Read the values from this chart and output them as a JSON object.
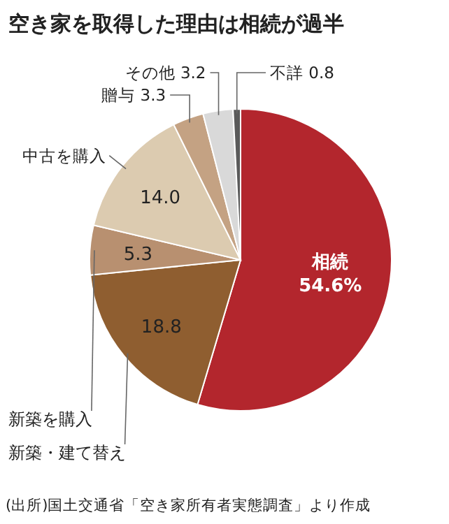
{
  "chart_data": {
    "type": "pie",
    "title": "空き家を取得した理由は相続が過半",
    "categories": [
      "相続",
      "新築・建て替え",
      "新築を購入",
      "中古を購入",
      "贈与",
      "その他",
      "不詳"
    ],
    "values": [
      54.6,
      18.8,
      5.3,
      14.0,
      3.3,
      3.2,
      0.8
    ],
    "value_labels": [
      "54.6%",
      "18.8",
      "5.3",
      "14.0",
      "3.3",
      "3.2",
      "0.8"
    ],
    "colors": [
      "#b3262d",
      "#8f5e30",
      "#b89070",
      "#dccbb0",
      "#c4a283",
      "#d9d9d9",
      "#5a5a5a"
    ],
    "annotations": [
      "(出所)国土交通省「空き家所有者実態調査」より作成"
    ]
  }
}
